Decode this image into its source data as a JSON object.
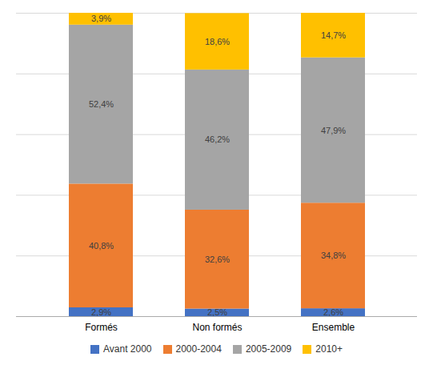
{
  "chart_data": {
    "type": "bar",
    "stacked": true,
    "categories": [
      "Formés",
      "Non formés",
      "Ensemble"
    ],
    "series": [
      {
        "name": "Avant 2000",
        "color": "#4472C4",
        "values": [
          2.9,
          2.5,
          2.6
        ],
        "value_labels": [
          "2,9%",
          "2,5%",
          "2,6%"
        ]
      },
      {
        "name": "2000-2004",
        "color": "#ED7D31",
        "values": [
          40.8,
          32.6,
          34.8
        ],
        "value_labels": [
          "40,8%",
          "32,6%",
          "34,8%"
        ]
      },
      {
        "name": "2005-2009",
        "color": "#A5A5A5",
        "values": [
          52.4,
          46.2,
          47.9
        ],
        "value_labels": [
          "52,4%",
          "46,2%",
          "47,9%"
        ]
      },
      {
        "name": "2010+",
        "color": "#FFC000",
        "values": [
          3.9,
          18.6,
          14.7
        ],
        "value_labels": [
          "3,9%",
          "18,6%",
          "14,7%"
        ]
      }
    ],
    "ylim": [
      0,
      100
    ],
    "yticks": [
      0,
      20,
      40,
      60,
      80,
      100
    ],
    "grid": true,
    "data_labels": true,
    "tick_labels": "x",
    "legend": "bottom"
  }
}
